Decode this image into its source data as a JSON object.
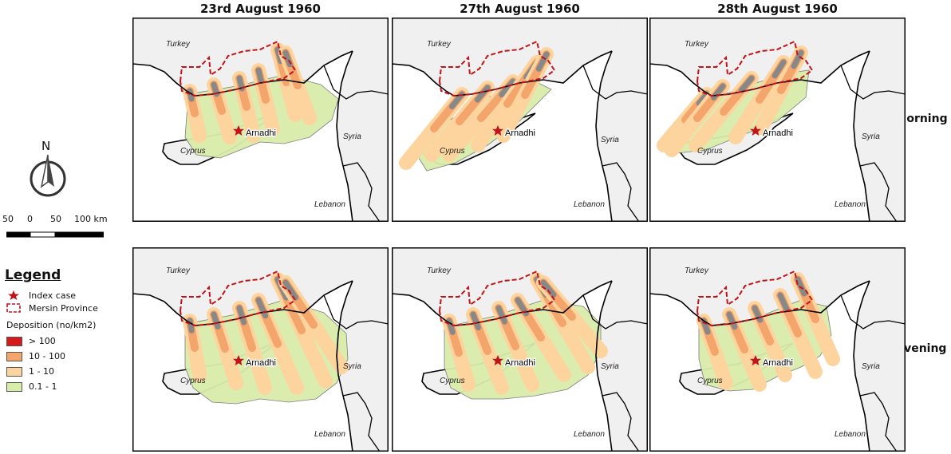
{
  "columns": [
    "23rd August 1960",
    "27th August 1960",
    "28th August 1960"
  ],
  "rows": [
    "Morning",
    "Evening"
  ],
  "map_labels": {
    "turkey": "Turkey",
    "syria": "Syria",
    "cyprus": "Cyprus",
    "lebanon": "Lebanon",
    "arnadhi": "Arnadhi"
  },
  "north": "N",
  "scale": {
    "ticks": [
      "50",
      "0",
      "50",
      "100 km"
    ]
  },
  "legend": {
    "title": "Legend",
    "index_case": "Index case",
    "mersin": "Mersin Province",
    "deposition_title": "Deposition  (no/km2)",
    "classes": [
      {
        "label": "> 100",
        "color": "#d7191c"
      },
      {
        "label": "10 - 100",
        "color": "#f4a56b"
      },
      {
        "label": "1 - 10",
        "color": "#fdd49e"
      },
      {
        "label": "0.1 - 1",
        "color": "#d9edaa"
      }
    ]
  },
  "colors": {
    "land": "#f0f0f0",
    "sea": "#ffffff",
    "plume_high": "#f4a56b",
    "plume_mid": "#fdd49e",
    "plume_low": "#d9edaa",
    "plume_core": "#888888",
    "province": "#c0141b",
    "star": "#c0141b"
  }
}
